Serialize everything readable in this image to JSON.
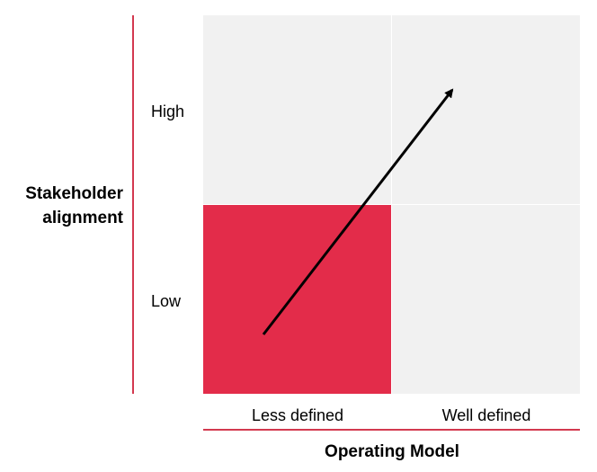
{
  "y_axis": {
    "title": "Stakeholder alignment",
    "levels": [
      "High",
      "Low"
    ]
  },
  "x_axis": {
    "title": "Operating Model",
    "levels": [
      "Less defined",
      "Well defined"
    ]
  }
}
